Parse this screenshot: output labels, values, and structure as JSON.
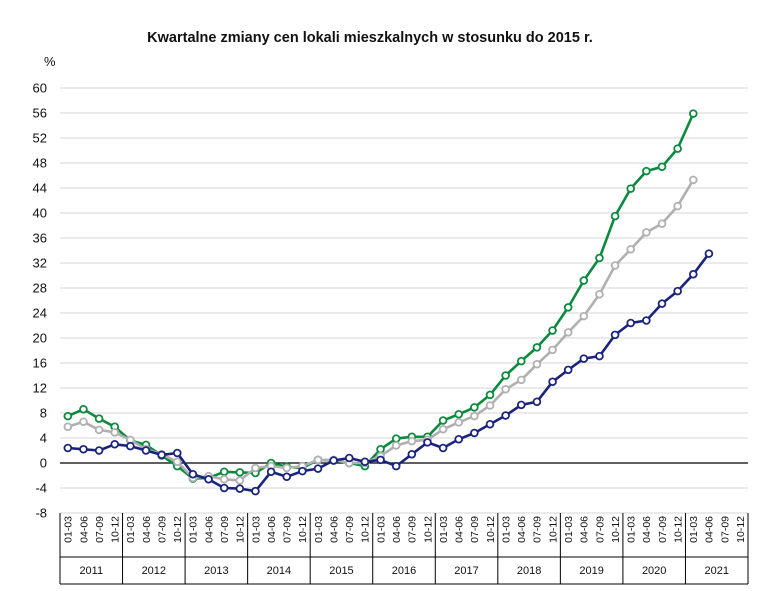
{
  "chart_data": {
    "type": "line",
    "title": "Kwartalne zmiany cen lokali mieszkalnych w stosunku do 2015 r.",
    "ylabel": "%",
    "ylim": [
      -8,
      60
    ],
    "yticks": [
      60,
      56,
      52,
      48,
      44,
      40,
      36,
      32,
      28,
      24,
      20,
      16,
      12,
      8,
      4,
      0,
      -4,
      -8
    ],
    "grid": true,
    "years": [
      "2011",
      "2012",
      "2013",
      "2014",
      "2015",
      "2016",
      "2017",
      "2018",
      "2019",
      "2020",
      "2021"
    ],
    "quarter_labels": [
      "01-03",
      "04-06",
      "07-09",
      "10-12"
    ],
    "series": [
      {
        "name": "green",
        "color": "#0a8a3c",
        "values": [
          7.5,
          8.6,
          7.1,
          5.8,
          3.6,
          2.9,
          1.2,
          -0.5,
          -2.5,
          -2.4,
          -1.4,
          -1.5,
          -1.6,
          0.0,
          -0.6,
          -0.8,
          0.5,
          0.4,
          0.0,
          -0.5,
          2.2,
          3.9,
          4.2,
          4.2,
          6.8,
          7.8,
          8.9,
          10.9,
          14.0,
          16.3,
          18.5,
          21.2,
          24.9,
          29.2,
          32.8,
          39.5,
          43.9,
          46.7,
          47.4,
          50.3,
          55.9
        ]
      },
      {
        "name": "gray",
        "color": "#b0b0b0",
        "values": [
          5.8,
          6.6,
          5.3,
          4.9,
          3.7,
          2.2,
          1.4,
          0.2,
          -2.4,
          -2.1,
          -2.6,
          -2.8,
          -0.8,
          -0.5,
          -0.8,
          -0.5,
          0.5,
          0.5,
          0.0,
          0.0,
          1.1,
          2.8,
          3.5,
          3.7,
          5.4,
          6.5,
          7.5,
          9.2,
          11.8,
          13.3,
          15.8,
          18.1,
          20.9,
          23.5,
          27.0,
          31.6,
          34.2,
          36.9,
          38.3,
          41.1,
          45.3
        ]
      },
      {
        "name": "navy",
        "color": "#1a237e",
        "values": [
          2.4,
          2.2,
          2.0,
          3.0,
          2.7,
          2.0,
          1.3,
          1.6,
          -1.8,
          -2.6,
          -4.0,
          -4.1,
          -4.5,
          -1.4,
          -2.2,
          -1.3,
          -0.9,
          0.4,
          0.8,
          0.2,
          0.5,
          -0.5,
          1.4,
          3.3,
          2.4,
          3.8,
          4.8,
          6.2,
          7.6,
          9.3,
          9.8,
          13.0,
          14.9,
          16.7,
          17.1,
          20.5,
          22.4,
          22.8,
          25.5,
          27.5,
          30.2,
          33.5
        ]
      }
    ]
  }
}
